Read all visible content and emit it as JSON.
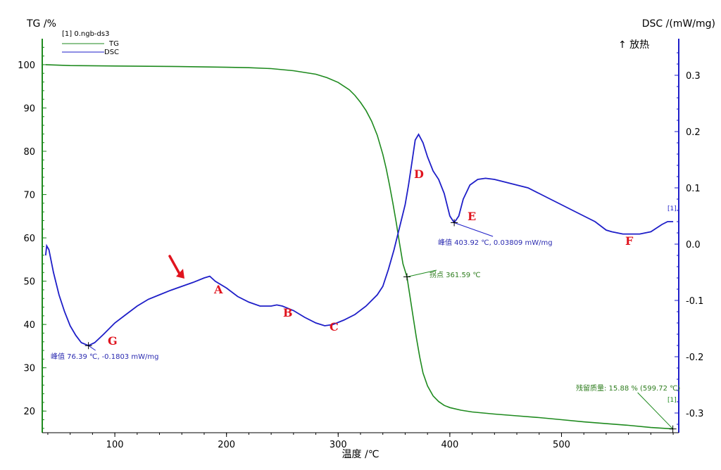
{
  "chart_data": {
    "type": "line",
    "left_axis_label": "TG /%",
    "right_axis_label": "DSC /(mW/mg)",
    "xlabel": "温度 /℃",
    "exo_label": "↑ 放热",
    "legend": {
      "file": "[1] 0.ngb-ds3",
      "items": [
        "TG",
        "DSC"
      ]
    },
    "xlim": [
      35,
      605
    ],
    "ylim_left": [
      15,
      106
    ],
    "ylim_right": [
      -0.335,
      0.365
    ],
    "x_ticks": [
      "100",
      "200",
      "300",
      "400",
      "500"
    ],
    "y_left_ticks": [
      "100",
      "90",
      "80",
      "70",
      "60",
      "50",
      "40",
      "30",
      "20"
    ],
    "y_right_ticks": [
      "0.3",
      "0.2",
      "0.1",
      "0.0",
      "-0.1",
      "-0.2",
      "-0.3"
    ],
    "colors": {
      "tg": "#1e8a1e",
      "dsc": "#1e1ec8",
      "marker": "#e0141e"
    },
    "series": [
      {
        "name": "TG",
        "axis": "left",
        "points": [
          [
            38,
            100.0
          ],
          [
            60,
            99.8
          ],
          [
            100,
            99.7
          ],
          [
            150,
            99.6
          ],
          [
            200,
            99.4
          ],
          [
            220,
            99.3
          ],
          [
            240,
            99.1
          ],
          [
            260,
            98.6
          ],
          [
            280,
            97.8
          ],
          [
            290,
            97.0
          ],
          [
            300,
            95.9
          ],
          [
            310,
            94.2
          ],
          [
            315,
            92.9
          ],
          [
            320,
            91.3
          ],
          [
            325,
            89.4
          ],
          [
            330,
            86.9
          ],
          [
            335,
            83.7
          ],
          [
            340,
            79.3
          ],
          [
            343,
            76.0
          ],
          [
            346,
            72.2
          ],
          [
            349,
            68.0
          ],
          [
            352,
            63.5
          ],
          [
            355,
            58.7
          ],
          [
            358,
            54.0
          ],
          [
            361.59,
            51.0
          ],
          [
            364,
            47.0
          ],
          [
            367,
            42.0
          ],
          [
            370,
            37.0
          ],
          [
            373,
            32.5
          ],
          [
            376,
            28.8
          ],
          [
            380,
            25.8
          ],
          [
            385,
            23.5
          ],
          [
            390,
            22.2
          ],
          [
            395,
            21.3
          ],
          [
            400,
            20.8
          ],
          [
            410,
            20.2
          ],
          [
            420,
            19.8
          ],
          [
            440,
            19.3
          ],
          [
            460,
            18.9
          ],
          [
            480,
            18.5
          ],
          [
            500,
            18.0
          ],
          [
            520,
            17.5
          ],
          [
            540,
            17.1
          ],
          [
            560,
            16.7
          ],
          [
            580,
            16.2
          ],
          [
            599.72,
            15.88
          ]
        ]
      },
      {
        "name": "DSC",
        "axis": "right",
        "points": [
          [
            38,
            -0.02
          ],
          [
            39,
            -0.003
          ],
          [
            41,
            -0.01
          ],
          [
            45,
            -0.05
          ],
          [
            50,
            -0.09
          ],
          [
            55,
            -0.12
          ],
          [
            60,
            -0.145
          ],
          [
            65,
            -0.162
          ],
          [
            70,
            -0.175
          ],
          [
            76.39,
            -0.1803
          ],
          [
            82,
            -0.175
          ],
          [
            90,
            -0.16
          ],
          [
            100,
            -0.14
          ],
          [
            110,
            -0.125
          ],
          [
            120,
            -0.11
          ],
          [
            130,
            -0.098
          ],
          [
            140,
            -0.09
          ],
          [
            150,
            -0.082
          ],
          [
            160,
            -0.075
          ],
          [
            170,
            -0.068
          ],
          [
            180,
            -0.06
          ],
          [
            185,
            -0.057
          ],
          [
            190,
            -0.066
          ],
          [
            200,
            -0.078
          ],
          [
            210,
            -0.093
          ],
          [
            220,
            -0.103
          ],
          [
            230,
            -0.11
          ],
          [
            240,
            -0.11
          ],
          [
            245,
            -0.108
          ],
          [
            250,
            -0.11
          ],
          [
            260,
            -0.118
          ],
          [
            270,
            -0.13
          ],
          [
            280,
            -0.14
          ],
          [
            288,
            -0.145
          ],
          [
            295,
            -0.143
          ],
          [
            305,
            -0.135
          ],
          [
            315,
            -0.125
          ],
          [
            325,
            -0.11
          ],
          [
            335,
            -0.09
          ],
          [
            340,
            -0.075
          ],
          [
            345,
            -0.045
          ],
          [
            350,
            -0.01
          ],
          [
            355,
            0.03
          ],
          [
            360,
            0.07
          ],
          [
            363,
            0.105
          ],
          [
            366,
            0.145
          ],
          [
            369,
            0.185
          ],
          [
            372,
            0.195
          ],
          [
            376,
            0.18
          ],
          [
            380,
            0.155
          ],
          [
            385,
            0.13
          ],
          [
            390,
            0.115
          ],
          [
            395,
            0.09
          ],
          [
            400,
            0.05
          ],
          [
            403.92,
            0.03809
          ],
          [
            408,
            0.05
          ],
          [
            412,
            0.08
          ],
          [
            418,
            0.105
          ],
          [
            425,
            0.115
          ],
          [
            432,
            0.117
          ],
          [
            440,
            0.115
          ],
          [
            450,
            0.11
          ],
          [
            460,
            0.105
          ],
          [
            470,
            0.1
          ],
          [
            480,
            0.09
          ],
          [
            490,
            0.08
          ],
          [
            500,
            0.07
          ],
          [
            510,
            0.06
          ],
          [
            520,
            0.05
          ],
          [
            530,
            0.04
          ],
          [
            540,
            0.025
          ],
          [
            545,
            0.022
          ],
          [
            550,
            0.02
          ],
          [
            555,
            0.018
          ],
          [
            570,
            0.018
          ],
          [
            580,
            0.022
          ],
          [
            590,
            0.035
          ],
          [
            595,
            0.04
          ],
          [
            600,
            0.04
          ]
        ]
      }
    ],
    "annotations": [
      {
        "id": "peak-g",
        "text": "峰值 76.39 ℃, -0.1803 mW/mg",
        "series": "DSC",
        "x": 76.39,
        "y": -0.1803
      },
      {
        "id": "peak-e",
        "text": "峰值 403.92 ℃, 0.03809 mW/mg",
        "series": "DSC",
        "x": 403.92,
        "y": 0.03809
      },
      {
        "id": "inflection",
        "text": "拐点 361.59 ℃",
        "series": "TG",
        "x": 361.59,
        "y": 51.0
      },
      {
        "id": "residual",
        "text": "残留质量: 15.88 % (599.72 ℃)",
        "series": "TG",
        "x": 599.72,
        "y": 15.88
      }
    ],
    "letter_labels": [
      "A",
      "B",
      "C",
      "D",
      "E",
      "F",
      "G"
    ],
    "end_tags": [
      "[1]",
      "[1]"
    ]
  }
}
